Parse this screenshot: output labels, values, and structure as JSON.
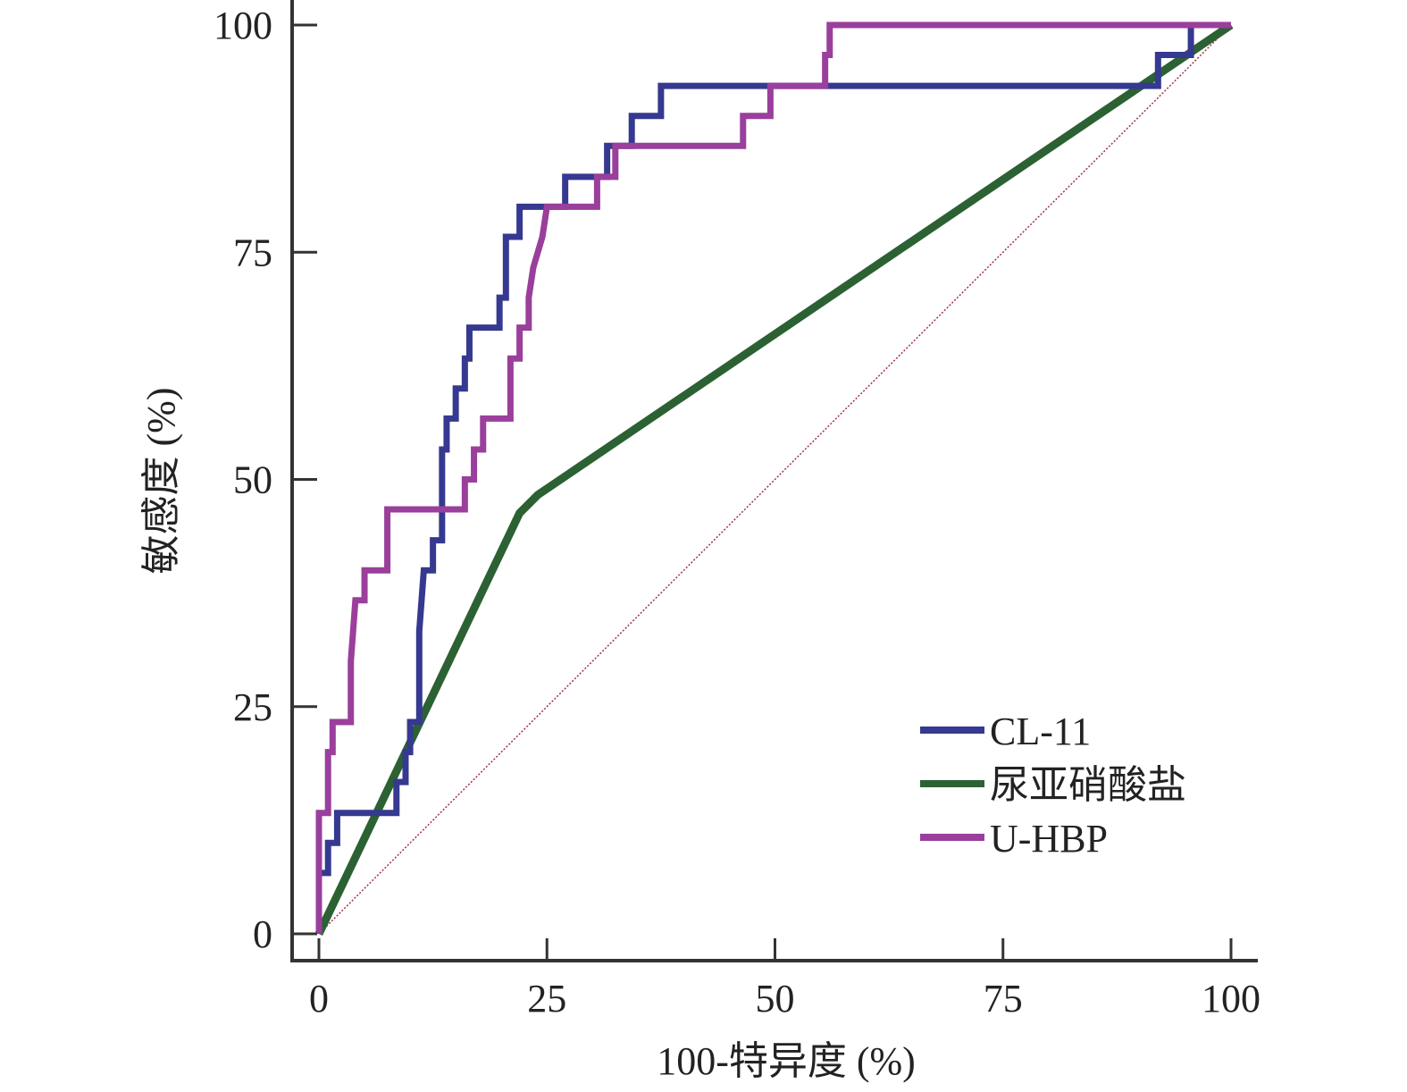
{
  "chart_data": {
    "type": "line",
    "title": "",
    "xlabel": "100-特异度 (%)",
    "ylabel": "敏感度 (%)",
    "xlim": [
      0,
      100
    ],
    "ylim": [
      0,
      100
    ],
    "xticks": [
      0,
      25,
      50,
      75,
      100
    ],
    "yticks": [
      0,
      25,
      50,
      75,
      100
    ],
    "xtick_labels": [
      "0",
      "25",
      "50",
      "75",
      "100"
    ],
    "ytick_labels": [
      "0",
      "25",
      "50",
      "75",
      "100"
    ],
    "grid": false,
    "legend_position": "bottom-right",
    "reference_line": {
      "name": "diagonal",
      "color": "#a0304a",
      "points": [
        [
          0,
          0
        ],
        [
          100,
          100
        ]
      ]
    },
    "series": [
      {
        "name": "CL-11",
        "color": "#353990",
        "points": [
          [
            0,
            0
          ],
          [
            0,
            6.7
          ],
          [
            1,
            6.7
          ],
          [
            1,
            10
          ],
          [
            2,
            10
          ],
          [
            2,
            13.3
          ],
          [
            8.5,
            13.3
          ],
          [
            8.5,
            16.7
          ],
          [
            9.5,
            16.7
          ],
          [
            9.5,
            20
          ],
          [
            10,
            20
          ],
          [
            10,
            23.3
          ],
          [
            11,
            23.3
          ],
          [
            11,
            33.3
          ],
          [
            11.5,
            40
          ],
          [
            12.5,
            40
          ],
          [
            12.5,
            43.3
          ],
          [
            13.5,
            43.3
          ],
          [
            13.5,
            53.3
          ],
          [
            14,
            53.3
          ],
          [
            14,
            56.7
          ],
          [
            15,
            56.7
          ],
          [
            15,
            60
          ],
          [
            16,
            60
          ],
          [
            16,
            63.3
          ],
          [
            16.5,
            63.3
          ],
          [
            16.5,
            66.7
          ],
          [
            19.8,
            66.7
          ],
          [
            19.8,
            70
          ],
          [
            20.5,
            70
          ],
          [
            20.5,
            76.7
          ],
          [
            22,
            76.7
          ],
          [
            22,
            80
          ],
          [
            24.5,
            80
          ],
          [
            27,
            80
          ],
          [
            27,
            83.3
          ],
          [
            31.6,
            83.3
          ],
          [
            31.6,
            86.7
          ],
          [
            34.3,
            86.7
          ],
          [
            34.3,
            90
          ],
          [
            37.5,
            90
          ],
          [
            37.5,
            93.3
          ],
          [
            92,
            93.3
          ],
          [
            92,
            96.7
          ],
          [
            95.6,
            96.7
          ],
          [
            95.6,
            100
          ],
          [
            100,
            100
          ]
        ]
      },
      {
        "name": "尿亚硝酸盐",
        "color": "#2c6133",
        "points": [
          [
            0,
            0
          ],
          [
            22,
            46.3
          ],
          [
            24,
            48.3
          ],
          [
            100,
            100
          ]
        ]
      },
      {
        "name": "U-HBP",
        "color": "#9a3f9c",
        "points": [
          [
            0,
            0
          ],
          [
            0,
            13.3
          ],
          [
            1,
            13.3
          ],
          [
            1,
            20
          ],
          [
            1.5,
            20
          ],
          [
            1.5,
            23.3
          ],
          [
            3.5,
            23.3
          ],
          [
            3.5,
            30
          ],
          [
            4,
            36.7
          ],
          [
            5,
            36.7
          ],
          [
            5,
            40
          ],
          [
            7.5,
            40
          ],
          [
            7.5,
            46.7
          ],
          [
            16,
            46.7
          ],
          [
            16,
            50
          ],
          [
            17,
            50
          ],
          [
            17,
            53.3
          ],
          [
            18,
            53.3
          ],
          [
            18,
            56.7
          ],
          [
            21,
            56.7
          ],
          [
            21,
            63.3
          ],
          [
            22,
            63.3
          ],
          [
            22,
            66.7
          ],
          [
            23,
            66.7
          ],
          [
            23,
            70
          ],
          [
            23.5,
            73.3
          ],
          [
            24.5,
            76.7
          ],
          [
            25,
            80
          ],
          [
            30.5,
            80
          ],
          [
            30.5,
            83.3
          ],
          [
            32.5,
            83.3
          ],
          [
            32.5,
            86.7
          ],
          [
            46.5,
            86.7
          ],
          [
            46.5,
            90
          ],
          [
            49.5,
            90
          ],
          [
            49.5,
            93.3
          ],
          [
            55.5,
            93.3
          ],
          [
            55.5,
            96.7
          ],
          [
            56,
            96.7
          ],
          [
            56,
            100
          ],
          [
            100,
            100
          ]
        ]
      }
    ]
  }
}
